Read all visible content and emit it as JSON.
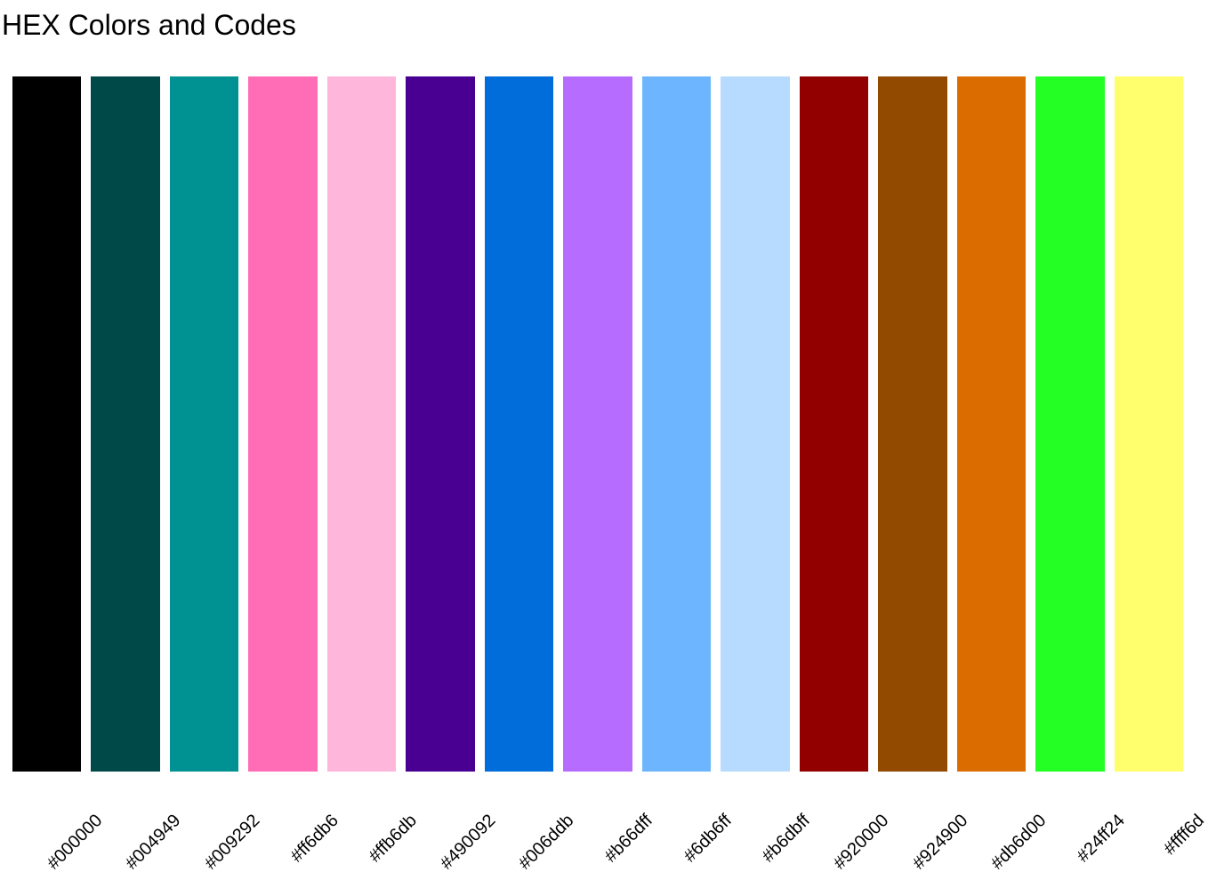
{
  "page": {
    "title": "HEX Colors and Codes"
  },
  "chart_data": {
    "type": "bar",
    "title": "HEX Colors and Codes",
    "categories": [
      "#000000",
      "#004949",
      "#009292",
      "#ff6db6",
      "#ffb6db",
      "#490092",
      "#006ddb",
      "#b66dff",
      "#6db6ff",
      "#b6dbff",
      "#920000",
      "#924900",
      "#db6d00",
      "#24ff24",
      "#ffff6d"
    ],
    "values": [
      1,
      1,
      1,
      1,
      1,
      1,
      1,
      1,
      1,
      1,
      1,
      1,
      1,
      1,
      1
    ],
    "colors": [
      "#000000",
      "#004949",
      "#009292",
      "#ff6db6",
      "#ffb6db",
      "#490092",
      "#006ddb",
      "#b66dff",
      "#6db6ff",
      "#b6dbff",
      "#920000",
      "#924900",
      "#db6d00",
      "#24ff24",
      "#ffff6d"
    ],
    "xlabel": "",
    "ylabel": "",
    "ylim": [
      0,
      1
    ],
    "grid": false,
    "legend": "none",
    "x_tick_rotation_deg": 45,
    "background": "#ffffff",
    "text_color": "#000000"
  }
}
